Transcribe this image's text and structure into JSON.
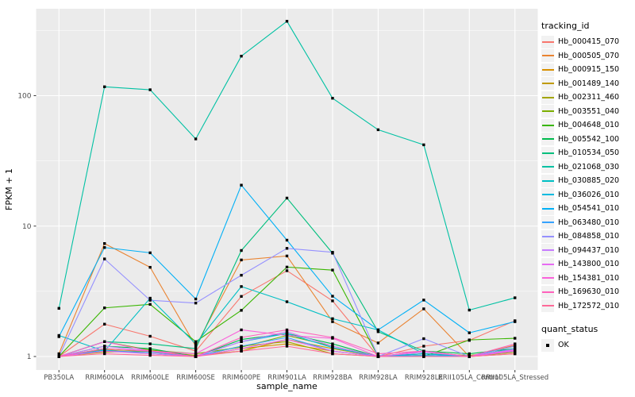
{
  "legend": {
    "tracking_title": "tracking_id",
    "quant_title": "quant_status",
    "quant_items": [
      {
        "label": "OK"
      }
    ]
  },
  "chart_data": {
    "type": "line",
    "title": "",
    "xlabel": "sample_name",
    "ylabel": "FPKM + 1",
    "y_scale": "log10",
    "ylim": [
      0.79,
      464
    ],
    "y_ticks": [
      1,
      10,
      100
    ],
    "y_tick_labels": [
      "1",
      "10",
      "100"
    ],
    "y_minor_ticks": [
      3.162,
      31.62,
      316.2
    ],
    "grid": true,
    "legend_position": "right",
    "point_marker": "black-square",
    "categories": [
      "PB350LA",
      "RRIM600LA",
      "RRIM600LE",
      "RRIM600SE",
      "RRIM600PE",
      "RRIM901LA",
      "RRIM928BA",
      "RRIM928LA",
      "RRIM928LE",
      "RRII105LA_Control",
      "RRII105LA_Stressed"
    ],
    "series": [
      {
        "name": "Hb_000415_070",
        "color": "#F8766D",
        "values": [
          1.0,
          1.77,
          1.43,
          1.1,
          2.89,
          4.55,
          2.67,
          1.0,
          1.2,
          1.33,
          1.88
        ]
      },
      {
        "name": "Hb_000505_070",
        "color": "#EA8331",
        "values": [
          1.05,
          7.35,
          4.83,
          1.2,
          5.5,
          5.9,
          1.85,
          1.27,
          2.32,
          1.0,
          1.22
        ]
      },
      {
        "name": "Hb_000915_150",
        "color": "#D89000",
        "values": [
          1.0,
          1.13,
          1.05,
          1.0,
          1.15,
          1.25,
          1.1,
          1.0,
          1.05,
          1.0,
          1.1
        ]
      },
      {
        "name": "Hb_001489_140",
        "color": "#C09B00",
        "values": [
          1.0,
          1.08,
          1.1,
          1.02,
          1.1,
          1.35,
          1.15,
          1.0,
          1.0,
          1.0,
          1.05
        ]
      },
      {
        "name": "Hb_002311_460",
        "color": "#A3A500",
        "values": [
          1.0,
          1.15,
          1.08,
          1.0,
          1.2,
          1.3,
          1.05,
          1.0,
          1.02,
          1.0,
          1.08
        ]
      },
      {
        "name": "Hb_003551_040",
        "color": "#7CAE00",
        "values": [
          1.0,
          1.3,
          1.12,
          1.05,
          1.18,
          1.45,
          1.2,
          1.0,
          1.05,
          1.02,
          1.1
        ]
      },
      {
        "name": "Hb_004648_010",
        "color": "#39B600",
        "values": [
          1.0,
          2.36,
          2.51,
          1.3,
          2.26,
          4.85,
          4.6,
          1.0,
          1.0,
          1.34,
          1.38
        ]
      },
      {
        "name": "Hb_005542_100",
        "color": "#00BB4E",
        "values": [
          1.0,
          1.2,
          1.15,
          1.0,
          1.35,
          1.5,
          1.25,
          1.0,
          1.1,
          1.05,
          1.15
        ]
      },
      {
        "name": "Hb_010534_050",
        "color": "#00BF7D",
        "values": [
          1.0,
          1.3,
          1.25,
          1.15,
          6.5,
          16.4,
          6.2,
          1.55,
          1.1,
          1.0,
          1.2
        ]
      },
      {
        "name": "Hb_021068_030",
        "color": "#00C1A3",
        "values": [
          2.34,
          117,
          111,
          46.6,
          201,
          372,
          95.6,
          54.8,
          42,
          2.27,
          2.82
        ]
      },
      {
        "name": "Hb_030885_020",
        "color": "#00BFC4",
        "values": [
          1.45,
          1.1,
          2.8,
          1.25,
          3.44,
          2.63,
          1.95,
          1.6,
          1.05,
          1.0,
          1.15
        ]
      },
      {
        "name": "Hb_036026_010",
        "color": "#00BAE0",
        "values": [
          1.0,
          1.12,
          1.05,
          1.0,
          1.3,
          1.5,
          1.17,
          1.0,
          1.05,
          1.0,
          1.12
        ]
      },
      {
        "name": "Hb_054541_010",
        "color": "#00B0F6",
        "values": [
          1.42,
          6.85,
          6.24,
          2.76,
          20.6,
          7.8,
          2.9,
          1.6,
          2.71,
          1.52,
          1.85
        ]
      },
      {
        "name": "Hb_063480_010",
        "color": "#35A2FF",
        "values": [
          1.0,
          1.1,
          1.08,
          1.0,
          1.2,
          1.4,
          1.1,
          1.0,
          1.02,
          1.0,
          1.1
        ]
      },
      {
        "name": "Hb_084858_010",
        "color": "#9590FF",
        "values": [
          1.0,
          5.6,
          2.7,
          2.57,
          4.2,
          6.75,
          6.3,
          1.0,
          1.37,
          1.0,
          1.2
        ]
      },
      {
        "name": "Hb_094437_010",
        "color": "#C77CFF",
        "values": [
          1.0,
          1.2,
          1.1,
          1.0,
          1.3,
          1.55,
          1.2,
          1.0,
          1.08,
          1.0,
          1.14
        ]
      },
      {
        "name": "Hb_143800_010",
        "color": "#E76BF3",
        "values": [
          1.0,
          1.1,
          1.05,
          1.0,
          1.15,
          1.35,
          1.1,
          1.0,
          1.0,
          1.0,
          1.1
        ]
      },
      {
        "name": "Hb_154381_010",
        "color": "#FA62DB",
        "values": [
          1.0,
          1.3,
          1.1,
          1.05,
          1.6,
          1.45,
          1.38,
          1.0,
          1.1,
          1.0,
          1.12
        ]
      },
      {
        "name": "Hb_169630_010",
        "color": "#FF62BC",
        "values": [
          1.0,
          1.15,
          1.1,
          1.0,
          1.4,
          1.6,
          1.4,
          1.05,
          1.1,
          1.0,
          1.25
        ]
      },
      {
        "name": "Hb_172572_010",
        "color": "#FF6A98",
        "values": [
          1.0,
          1.05,
          1.02,
          1.0,
          1.1,
          1.2,
          1.05,
          1.0,
          1.0,
          1.0,
          1.05
        ]
      }
    ]
  },
  "colors": {
    "panel_bg": "#EBEBEB",
    "grid": "#FFFFFF",
    "tick_label": "#4D4D4D",
    "axis_title": "#000000",
    "legend_key_bg": "#F2F2F2",
    "point": "#000000"
  }
}
